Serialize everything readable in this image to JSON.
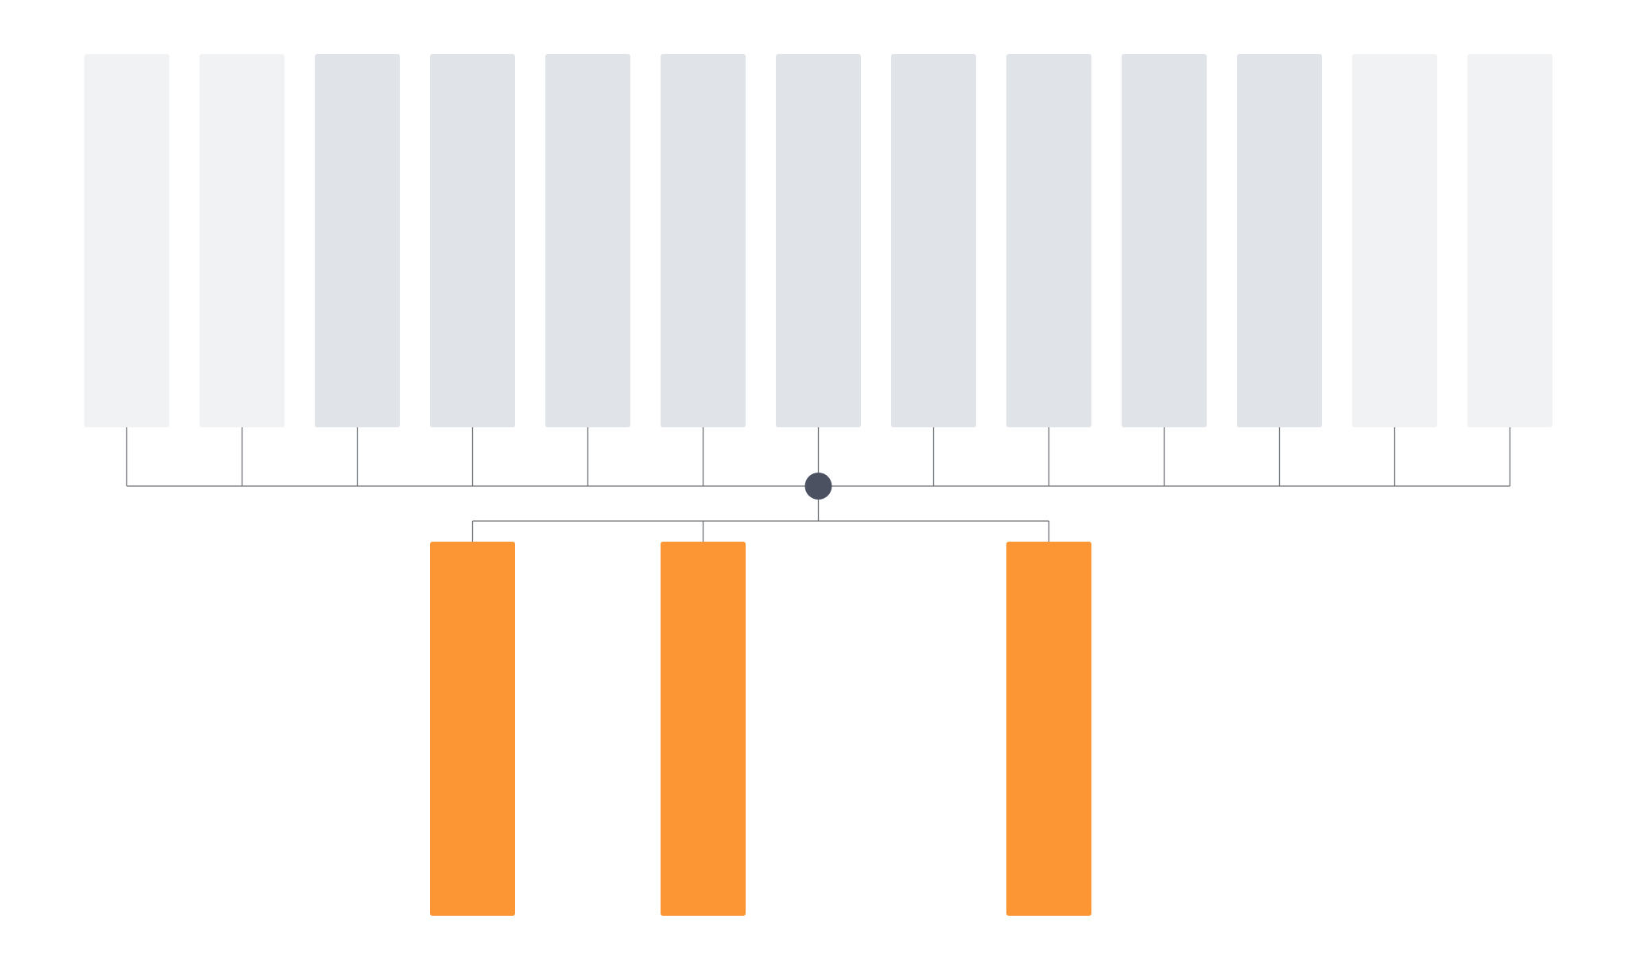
{
  "diagram": {
    "type": "hub-and-spoke",
    "colors": {
      "background": "#ffffff",
      "top_node_light": "#f1f2f4",
      "top_node_medium": "#e0e3e7",
      "hub": "#4b5161",
      "bottom_node": "#fc9533",
      "connector": "#6b6e75"
    },
    "top_nodes": [
      {
        "id": "t1",
        "shade": "light"
      },
      {
        "id": "t2",
        "shade": "light"
      },
      {
        "id": "t3",
        "shade": "medium"
      },
      {
        "id": "t4",
        "shade": "medium"
      },
      {
        "id": "t5",
        "shade": "medium"
      },
      {
        "id": "t6",
        "shade": "medium"
      },
      {
        "id": "t7",
        "shade": "medium"
      },
      {
        "id": "t8",
        "shade": "medium"
      },
      {
        "id": "t9",
        "shade": "medium"
      },
      {
        "id": "t10",
        "shade": "medium"
      },
      {
        "id": "t11",
        "shade": "medium"
      },
      {
        "id": "t12",
        "shade": "light"
      },
      {
        "id": "t13",
        "shade": "light"
      }
    ],
    "hub": {
      "id": "hub"
    },
    "bottom_nodes": [
      {
        "id": "b1",
        "aligned_with": "t4"
      },
      {
        "id": "b2",
        "aligned_with": "t6"
      },
      {
        "id": "b3",
        "aligned_with": "t9"
      }
    ]
  }
}
